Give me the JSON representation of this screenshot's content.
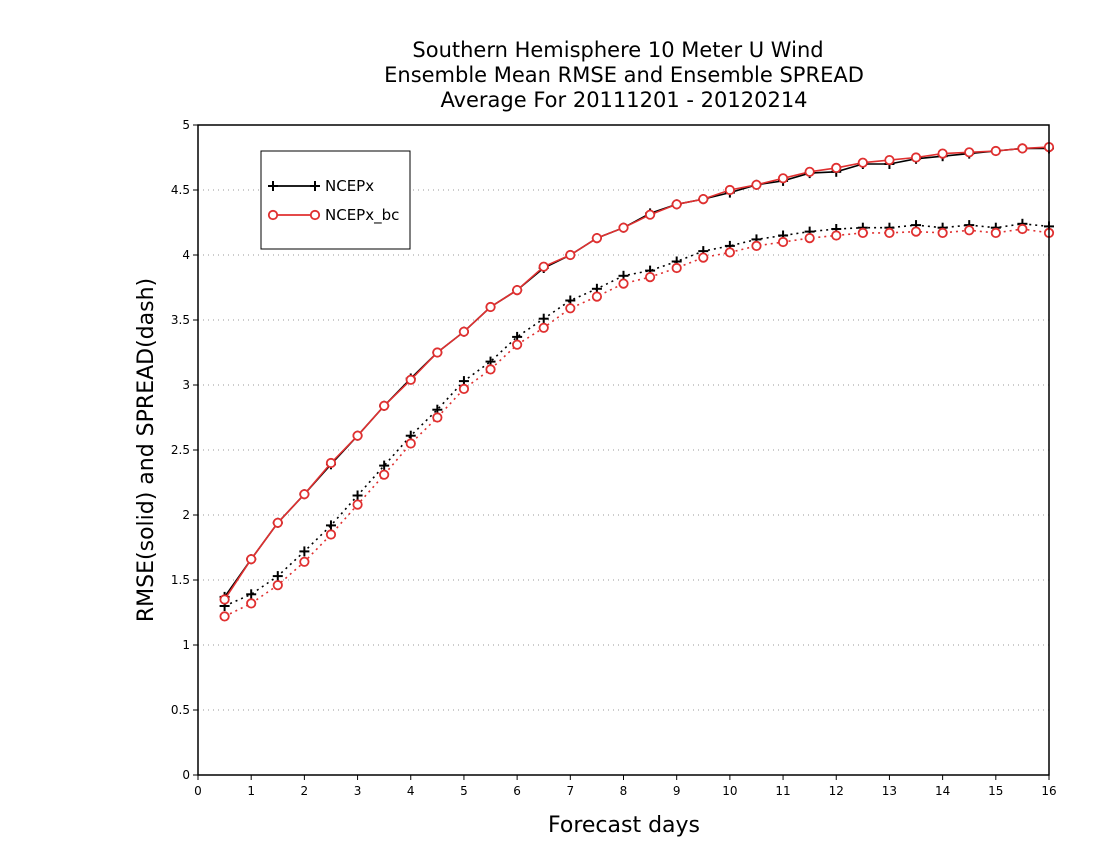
{
  "chart_data": {
    "type": "line",
    "title": [
      "Southern Hemisphere 10 Meter U Wind",
      "Ensemble Mean RMSE and Ensemble SPREAD",
      "Average For 20111201 - 20120214"
    ],
    "xlabel": "Forecast days",
    "ylabel": "RMSE(solid) and SPREAD(dash)",
    "xlim": [
      0,
      16
    ],
    "ylim": [
      0,
      5
    ],
    "xticks": [
      "0",
      "1",
      "2",
      "3",
      "4",
      "5",
      "6",
      "7",
      "8",
      "9",
      "10",
      "11",
      "12",
      "13",
      "14",
      "15",
      "16"
    ],
    "yticks": [
      "0",
      "0.5",
      "1",
      "1.5",
      "2",
      "2.5",
      "3",
      "3.5",
      "4",
      "4.5",
      "5"
    ],
    "grid": "horizontal dotted",
    "legend_position": "top-left",
    "x": [
      0.5,
      1,
      1.5,
      2,
      2.5,
      3,
      3.5,
      4,
      4.5,
      5,
      5.5,
      6,
      6.5,
      7,
      7.5,
      8,
      8.5,
      9,
      9.5,
      10,
      10.5,
      11,
      11.5,
      12,
      12.5,
      13,
      13.5,
      14,
      14.5,
      15,
      15.5,
      16
    ],
    "series": [
      {
        "name": "NCEPx",
        "color": "#000000",
        "marker": "plus",
        "rmse": [
          1.37,
          1.66,
          1.94,
          2.16,
          2.39,
          2.61,
          2.84,
          3.05,
          3.25,
          3.41,
          3.6,
          3.73,
          3.9,
          4.0,
          4.13,
          4.21,
          4.32,
          4.39,
          4.43,
          4.48,
          4.54,
          4.57,
          4.63,
          4.64,
          4.7,
          4.7,
          4.74,
          4.76,
          4.78,
          4.8,
          4.82,
          4.82
        ],
        "spread": [
          1.3,
          1.39,
          1.53,
          1.72,
          1.92,
          2.15,
          2.38,
          2.61,
          2.81,
          3.03,
          3.18,
          3.37,
          3.51,
          3.65,
          3.74,
          3.84,
          3.88,
          3.95,
          4.03,
          4.07,
          4.12,
          4.15,
          4.18,
          4.2,
          4.21,
          4.21,
          4.23,
          4.21,
          4.23,
          4.21,
          4.24,
          4.22
        ]
      },
      {
        "name": "NCEPx_bc",
        "color": "#e03030",
        "marker": "circle",
        "rmse": [
          1.35,
          1.66,
          1.94,
          2.16,
          2.4,
          2.61,
          2.84,
          3.04,
          3.25,
          3.41,
          3.6,
          3.73,
          3.91,
          4.0,
          4.13,
          4.21,
          4.31,
          4.39,
          4.43,
          4.5,
          4.54,
          4.59,
          4.64,
          4.67,
          4.71,
          4.73,
          4.75,
          4.78,
          4.79,
          4.8,
          4.82,
          4.83
        ],
        "spread": [
          1.22,
          1.32,
          1.46,
          1.64,
          1.85,
          2.08,
          2.31,
          2.55,
          2.75,
          2.97,
          3.12,
          3.31,
          3.44,
          3.59,
          3.68,
          3.78,
          3.83,
          3.9,
          3.98,
          4.02,
          4.07,
          4.1,
          4.13,
          4.15,
          4.17,
          4.17,
          4.18,
          4.17,
          4.19,
          4.17,
          4.2,
          4.17
        ]
      }
    ]
  }
}
